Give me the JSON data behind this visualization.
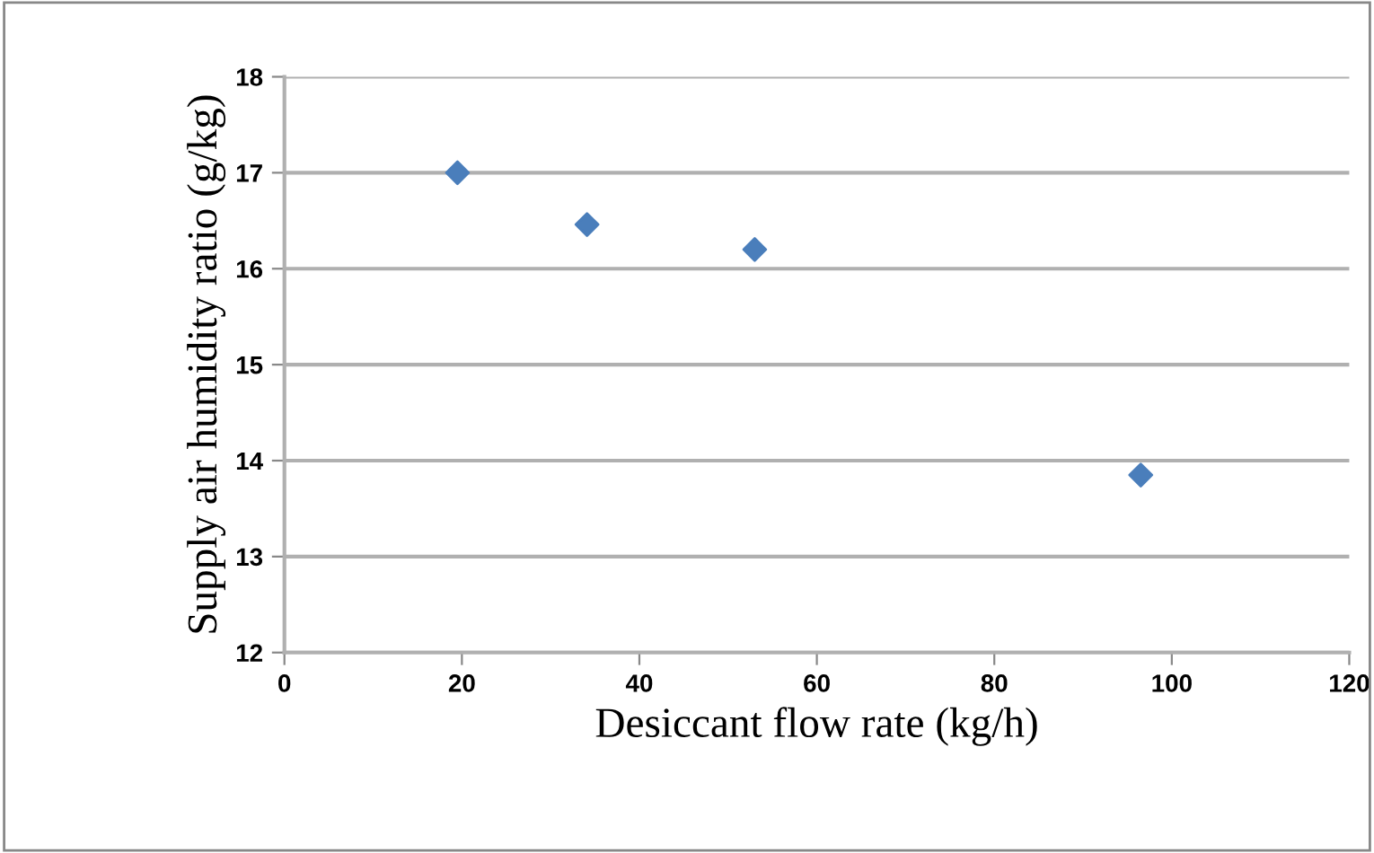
{
  "chart_data": {
    "type": "scatter",
    "xlabel": "Desiccant flow rate (kg/h)",
    "ylabel": "Supply air humidity ratio (g/kg)",
    "x": [
      19.5,
      34.1,
      53,
      96.5
    ],
    "series": [
      {
        "color": "#4a7ebb",
        "values": [
          17.0,
          16.46,
          16.2,
          13.85
        ]
      }
    ],
    "xlim": [
      0,
      120
    ],
    "xticks": [
      0,
      20,
      40,
      60,
      80,
      100,
      120
    ],
    "ylim": [
      12,
      18
    ],
    "yticks": [
      12,
      13,
      14,
      15,
      16,
      17,
      18
    ],
    "grid": "y",
    "marker": "diamond",
    "legend": false
  }
}
